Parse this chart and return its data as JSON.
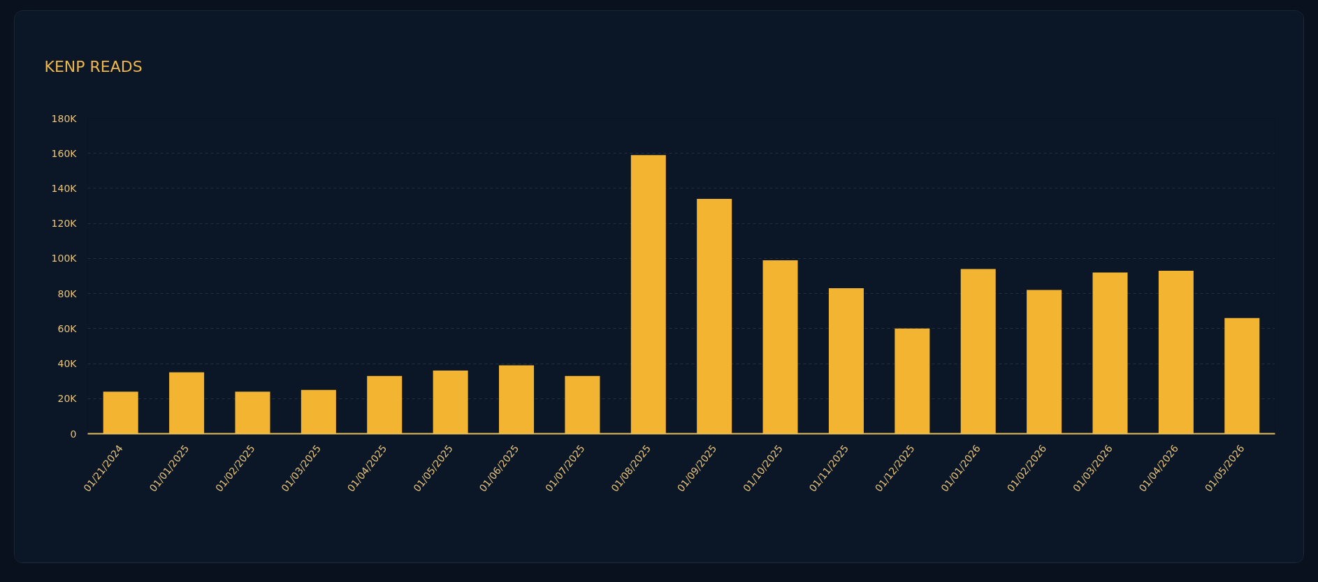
{
  "chart_data": {
    "type": "bar",
    "title": "KENP READS",
    "categories": [
      "01/21/2024",
      "01/01/2025",
      "01/02/2025",
      "01/03/2025",
      "01/04/2025",
      "01/05/2025",
      "01/06/2025",
      "01/07/2025",
      "01/08/2025",
      "01/09/2025",
      "01/10/2025",
      "01/11/2025",
      "01/12/2025",
      "01/01/2026",
      "01/02/2026",
      "01/03/2026",
      "01/04/2026",
      "01/05/2026"
    ],
    "values": [
      24000,
      35000,
      24000,
      25000,
      33000,
      36000,
      39000,
      33000,
      159000,
      134000,
      99000,
      83000,
      60000,
      94000,
      82000,
      92000,
      93000,
      66000
    ],
    "color": "#f2b431",
    "ylim": [
      0,
      180000
    ],
    "yticks": [
      0,
      {
        "value": 20000,
        "label": "20K"
      },
      {
        "value": 40000,
        "label": "40K"
      },
      {
        "value": 60000,
        "label": "60K"
      },
      {
        "value": 80000,
        "label": "80K"
      },
      {
        "value": 100000,
        "label": "100K"
      },
      {
        "value": 120000,
        "label": "120K"
      },
      {
        "value": 140000,
        "label": "140K"
      },
      {
        "value": 160000,
        "label": "160K"
      },
      {
        "value": 180000,
        "label": "180K"
      }
    ],
    "grid": "y"
  }
}
